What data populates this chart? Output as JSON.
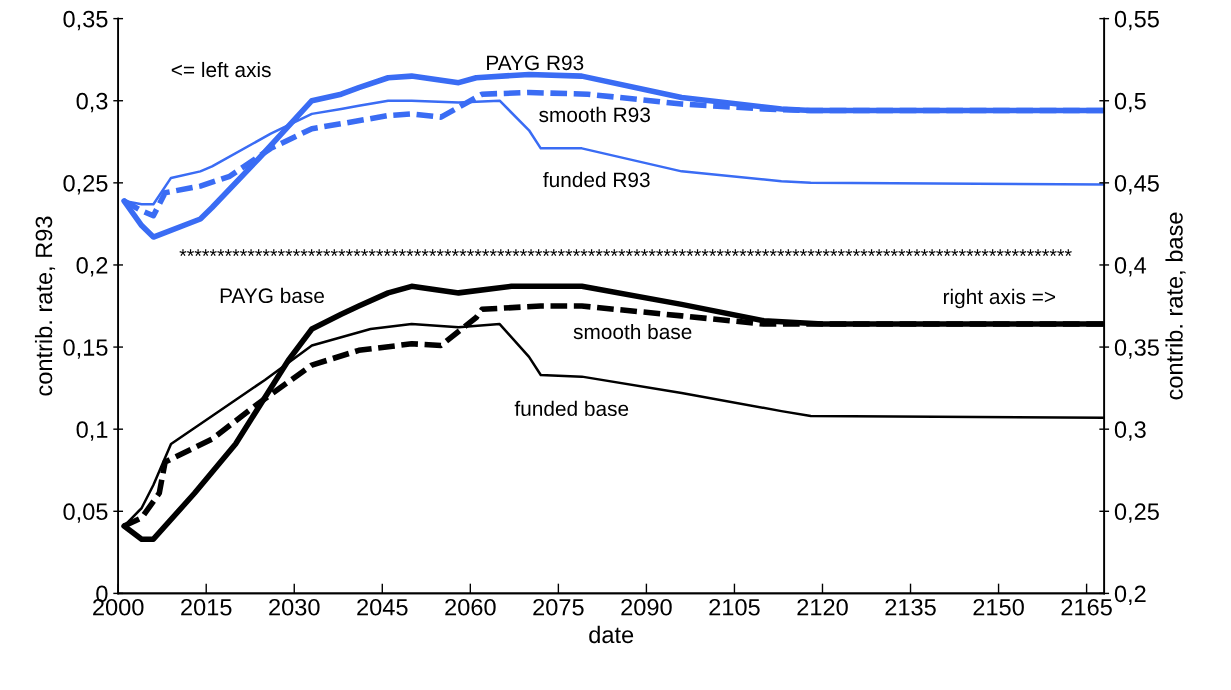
{
  "chart_data": {
    "type": "line",
    "xlabel": "date",
    "ylabel": "contrib. rate, R93",
    "y2label": "contrib. rate, base",
    "xlim": [
      2000,
      2168
    ],
    "xticks": [
      2000,
      2015,
      2030,
      2045,
      2060,
      2075,
      2090,
      2105,
      2120,
      2135,
      2150,
      2165
    ],
    "ylim": [
      0,
      0.35
    ],
    "yticks": [
      {
        "value": 0,
        "label": "0"
      },
      {
        "value": 0.05,
        "label": "0,05"
      },
      {
        "value": 0.1,
        "label": "0,1"
      },
      {
        "value": 0.15,
        "label": "0,15"
      },
      {
        "value": 0.2,
        "label": "0,2"
      },
      {
        "value": 0.25,
        "label": "0,25"
      },
      {
        "value": 0.3,
        "label": "0,3"
      },
      {
        "value": 0.35,
        "label": "0,35"
      }
    ],
    "y2lim": [
      0.2,
      0.55
    ],
    "y2ticks": [
      {
        "value": 0.2,
        "label": "0,2"
      },
      {
        "value": 0.25,
        "label": "0,25"
      },
      {
        "value": 0.3,
        "label": "0,3"
      },
      {
        "value": 0.35,
        "label": "0,35"
      },
      {
        "value": 0.4,
        "label": "0,4"
      },
      {
        "value": 0.45,
        "label": "0,45"
      },
      {
        "value": 0.5,
        "label": "0,5"
      },
      {
        "value": 0.55,
        "label": "0,55"
      }
    ],
    "grid": false,
    "legend": false,
    "marker": "none",
    "series": [
      {
        "name": "PAYG R93",
        "color": "#3a6cf4",
        "line_style": "solid",
        "x": [
          2001,
          2004,
          2006,
          2014,
          2016,
          2024,
          2033,
          2038,
          2041,
          2046,
          2050,
          2058,
          2061,
          2070,
          2079,
          2096,
          2113,
          2118,
          2168
        ],
        "values": [
          0.239,
          0.224,
          0.217,
          0.228,
          0.235,
          0.265,
          0.3,
          0.304,
          0.308,
          0.314,
          0.315,
          0.311,
          0.314,
          0.316,
          0.315,
          0.302,
          0.295,
          0.294,
          0.294
        ]
      },
      {
        "name": "funded R93",
        "color": "#3a6cf4",
        "line_style": "solid",
        "x": [
          2001,
          2004,
          2006,
          2009,
          2014,
          2016,
          2026,
          2033,
          2038,
          2041,
          2046,
          2050,
          2058,
          2065,
          2070,
          2072,
          2079,
          2096,
          2113,
          2118,
          2168
        ],
        "values": [
          0.239,
          0.237,
          0.237,
          0.253,
          0.257,
          0.26,
          0.28,
          0.292,
          0.295,
          0.297,
          0.3,
          0.3,
          0.299,
          0.3,
          0.282,
          0.271,
          0.271,
          0.257,
          0.251,
          0.25,
          0.249
        ]
      },
      {
        "name": "smooth R93",
        "color": "#3a6cf4",
        "line_style": "dashed",
        "x": [
          2001,
          2004,
          2006,
          2008,
          2014,
          2019,
          2026,
          2033,
          2038,
          2046,
          2050,
          2055,
          2061,
          2062,
          2070,
          2080,
          2096,
          2110,
          2118,
          2168
        ],
        "values": [
          0.239,
          0.233,
          0.23,
          0.244,
          0.248,
          0.254,
          0.271,
          0.283,
          0.286,
          0.291,
          0.292,
          0.29,
          0.302,
          0.304,
          0.305,
          0.304,
          0.298,
          0.295,
          0.294,
          0.294
        ]
      },
      {
        "name": "PAYG base",
        "color": "#000000",
        "line_style": "solid",
        "axis": "y2",
        "x": [
          2001,
          2004,
          2006,
          2013,
          2020,
          2029,
          2033,
          2038,
          2041,
          2046,
          2050,
          2058,
          2067,
          2076,
          2079,
          2096,
          2110,
          2120,
          2168
        ],
        "values": [
          0.241,
          0.233,
          0.233,
          0.261,
          0.291,
          0.342,
          0.361,
          0.37,
          0.375,
          0.383,
          0.387,
          0.383,
          0.387,
          0.387,
          0.387,
          0.376,
          0.366,
          0.364,
          0.364
        ]
      },
      {
        "name": "funded base",
        "color": "#000000",
        "line_style": "solid",
        "axis": "y2",
        "x": [
          2001,
          2004,
          2006,
          2009,
          2016,
          2025,
          2033,
          2038,
          2043,
          2050,
          2058,
          2065,
          2070,
          2072,
          2079,
          2096,
          2113,
          2118,
          2168
        ],
        "values": [
          0.241,
          0.252,
          0.266,
          0.291,
          0.308,
          0.33,
          0.351,
          0.356,
          0.361,
          0.364,
          0.362,
          0.364,
          0.344,
          0.333,
          0.332,
          0.322,
          0.311,
          0.308,
          0.307
        ]
      },
      {
        "name": "smooth base",
        "color": "#000000",
        "line_style": "dashed",
        "axis": "y2",
        "x": [
          2001,
          2004,
          2007,
          2008,
          2016,
          2024,
          2033,
          2041,
          2050,
          2055,
          2061,
          2062,
          2072,
          2079,
          2096,
          2110,
          2120,
          2168
        ],
        "values": [
          0.241,
          0.246,
          0.261,
          0.28,
          0.294,
          0.316,
          0.339,
          0.348,
          0.352,
          0.351,
          0.368,
          0.373,
          0.375,
          0.375,
          0.369,
          0.364,
          0.364,
          0.364
        ]
      }
    ],
    "annotations": [
      "<= left axis",
      "right axis =>",
      "**********************************************************************************************************************"
    ]
  }
}
